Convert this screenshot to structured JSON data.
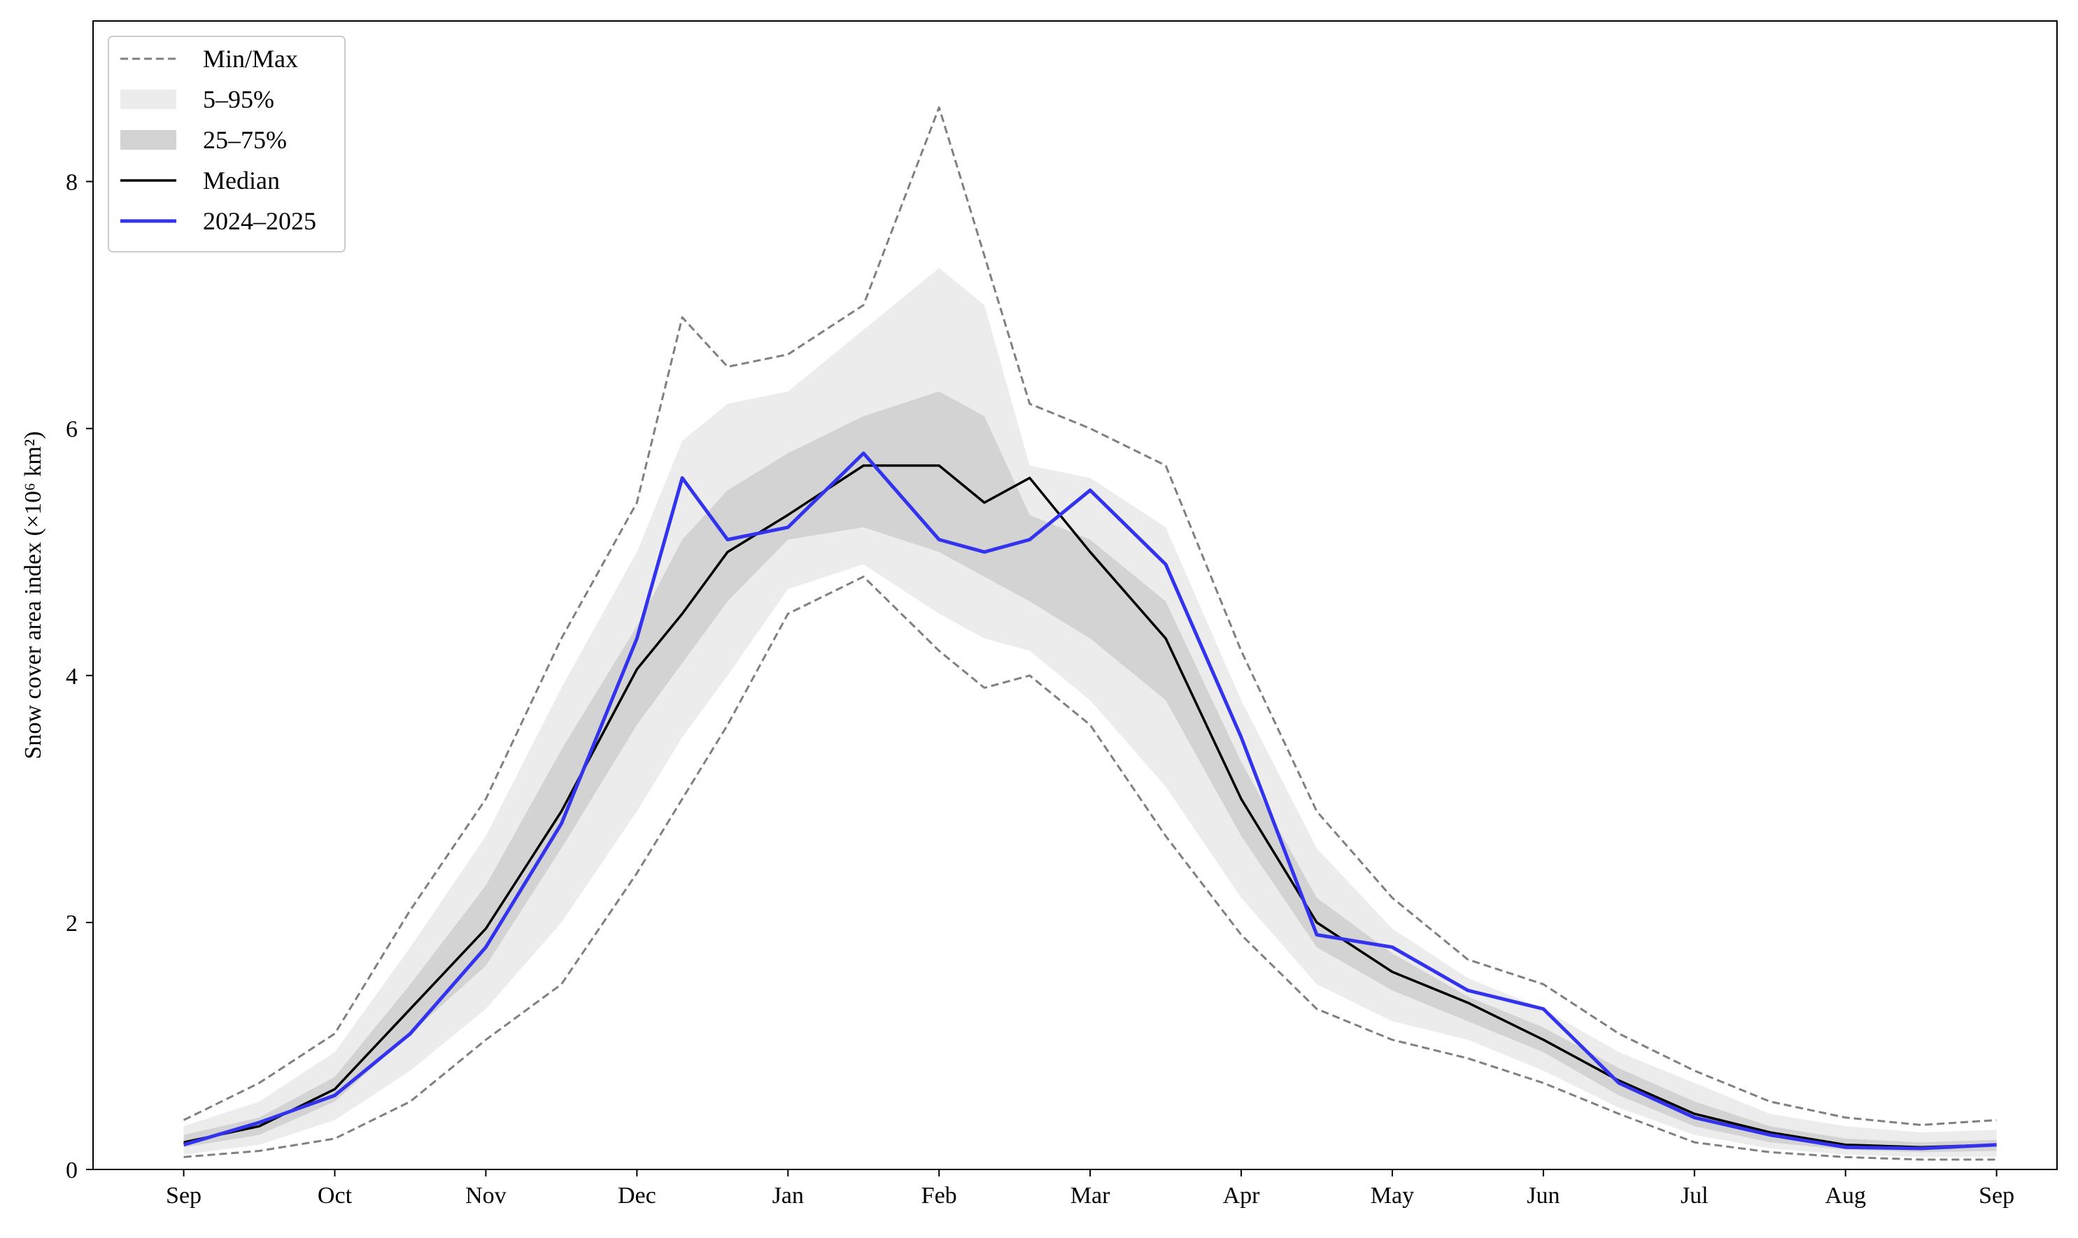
{
  "chart_data": {
    "type": "line",
    "title": "",
    "xlabel": "",
    "ylabel": "Snow cover area index (×10⁶ km²)",
    "ylim": [
      0,
      9.3
    ],
    "xlim": [
      -0.6,
      12.4
    ],
    "grid": false,
    "legend_placement": "top-left",
    "x_ticks": [
      {
        "v": 0,
        "label": "Sep"
      },
      {
        "v": 1,
        "label": "Oct"
      },
      {
        "v": 2,
        "label": "Nov"
      },
      {
        "v": 3,
        "label": "Dec"
      },
      {
        "v": 4,
        "label": "Jan"
      },
      {
        "v": 5,
        "label": "Feb"
      },
      {
        "v": 6,
        "label": "Mar"
      },
      {
        "v": 7,
        "label": "Apr"
      },
      {
        "v": 8,
        "label": "May"
      },
      {
        "v": 9,
        "label": "Jun"
      },
      {
        "v": 10,
        "label": "Jul"
      },
      {
        "v": 11,
        "label": "Aug"
      },
      {
        "v": 12,
        "label": "Sep"
      }
    ],
    "y_ticks": [
      {
        "v": 0,
        "label": "0"
      },
      {
        "v": 2,
        "label": "2"
      },
      {
        "v": 4,
        "label": "4"
      },
      {
        "v": 6,
        "label": "6"
      },
      {
        "v": 8,
        "label": "8"
      }
    ],
    "x": [
      0,
      0.5,
      1,
      1.5,
      2,
      2.5,
      3,
      3.3,
      3.6,
      4,
      4.5,
      5,
      5.3,
      5.6,
      6,
      6.5,
      7,
      7.5,
      8,
      8.5,
      9,
      9.5,
      10,
      10.5,
      11,
      11.5,
      12
    ],
    "series": [
      {
        "name": "Min/Max",
        "role": "max",
        "color": "#808080",
        "style": "dashed",
        "values": [
          0.4,
          0.7,
          1.1,
          2.1,
          3.0,
          4.3,
          5.4,
          6.9,
          6.5,
          6.6,
          7.0,
          8.6,
          7.4,
          6.2,
          6.0,
          5.7,
          4.2,
          2.9,
          2.2,
          1.7,
          1.5,
          1.1,
          0.8,
          0.55,
          0.42,
          0.36,
          0.4
        ]
      },
      {
        "name": "Min/Max",
        "role": "min",
        "color": "#808080",
        "style": "dashed",
        "values": [
          0.1,
          0.15,
          0.25,
          0.55,
          1.05,
          1.5,
          2.4,
          3.0,
          3.6,
          4.5,
          4.8,
          4.2,
          3.9,
          4.0,
          3.6,
          2.7,
          1.9,
          1.3,
          1.05,
          0.9,
          0.7,
          0.45,
          0.22,
          0.14,
          0.1,
          0.08,
          0.08
        ]
      },
      {
        "name": "5–95%",
        "role": "p95",
        "color": "#ececec",
        "style": "fill",
        "values": [
          0.35,
          0.55,
          0.95,
          1.8,
          2.7,
          3.9,
          5.0,
          5.9,
          6.2,
          6.3,
          6.8,
          7.3,
          7.0,
          5.7,
          5.6,
          5.2,
          3.8,
          2.6,
          1.95,
          1.55,
          1.3,
          0.95,
          0.7,
          0.45,
          0.35,
          0.3,
          0.32
        ]
      },
      {
        "name": "25–75%",
        "role": "p75",
        "color": "#d3d3d3",
        "style": "fill",
        "values": [
          0.28,
          0.42,
          0.75,
          1.5,
          2.3,
          3.4,
          4.4,
          5.1,
          5.5,
          5.8,
          6.1,
          6.3,
          6.1,
          5.3,
          5.1,
          4.6,
          3.3,
          2.2,
          1.75,
          1.4,
          1.15,
          0.82,
          0.55,
          0.35,
          0.25,
          0.22,
          0.24
        ]
      },
      {
        "name": "25–75%",
        "role": "p25",
        "color": "#d3d3d3",
        "style": "fill",
        "values": [
          0.18,
          0.28,
          0.55,
          1.1,
          1.65,
          2.6,
          3.6,
          4.1,
          4.6,
          5.1,
          5.2,
          5.0,
          4.8,
          4.6,
          4.3,
          3.8,
          2.7,
          1.8,
          1.45,
          1.2,
          0.95,
          0.6,
          0.35,
          0.22,
          0.16,
          0.14,
          0.15
        ]
      },
      {
        "name": "5–95%",
        "role": "p5",
        "color": "#ececec",
        "style": "fill",
        "values": [
          0.12,
          0.2,
          0.4,
          0.8,
          1.3,
          2.0,
          2.9,
          3.5,
          4.0,
          4.7,
          4.9,
          4.5,
          4.3,
          4.2,
          3.8,
          3.1,
          2.2,
          1.5,
          1.2,
          1.05,
          0.8,
          0.5,
          0.28,
          0.17,
          0.12,
          0.1,
          0.1
        ]
      },
      {
        "name": "Median",
        "role": "median",
        "color": "#000000",
        "style": "solid",
        "values": [
          0.22,
          0.35,
          0.65,
          1.3,
          1.95,
          2.9,
          4.05,
          4.5,
          5.0,
          5.3,
          5.7,
          5.7,
          5.4,
          5.6,
          5.0,
          4.3,
          3.0,
          2.0,
          1.6,
          1.35,
          1.05,
          0.72,
          0.45,
          0.3,
          0.2,
          0.18,
          0.2
        ]
      },
      {
        "name": "2024–2025",
        "role": "current",
        "color": "#3333ee",
        "style": "solid",
        "values": [
          0.2,
          0.38,
          0.6,
          1.1,
          1.8,
          2.8,
          4.3,
          5.6,
          5.1,
          5.2,
          5.8,
          5.1,
          5.0,
          5.1,
          5.5,
          4.9,
          3.5,
          1.9,
          1.8,
          1.45,
          1.3,
          0.7,
          0.42,
          0.28,
          0.18,
          0.17,
          0.2
        ]
      }
    ]
  },
  "legend": [
    {
      "label": "Min/Max",
      "kind": "dashed",
      "color": "#808080"
    },
    {
      "label": "5–95%",
      "kind": "patch",
      "color": "#ececec"
    },
    {
      "label": "25–75%",
      "kind": "patch",
      "color": "#d3d3d3"
    },
    {
      "label": "Median",
      "kind": "line",
      "color": "#000000"
    },
    {
      "label": "2024–2025",
      "kind": "line",
      "color": "#3333ee"
    }
  ]
}
